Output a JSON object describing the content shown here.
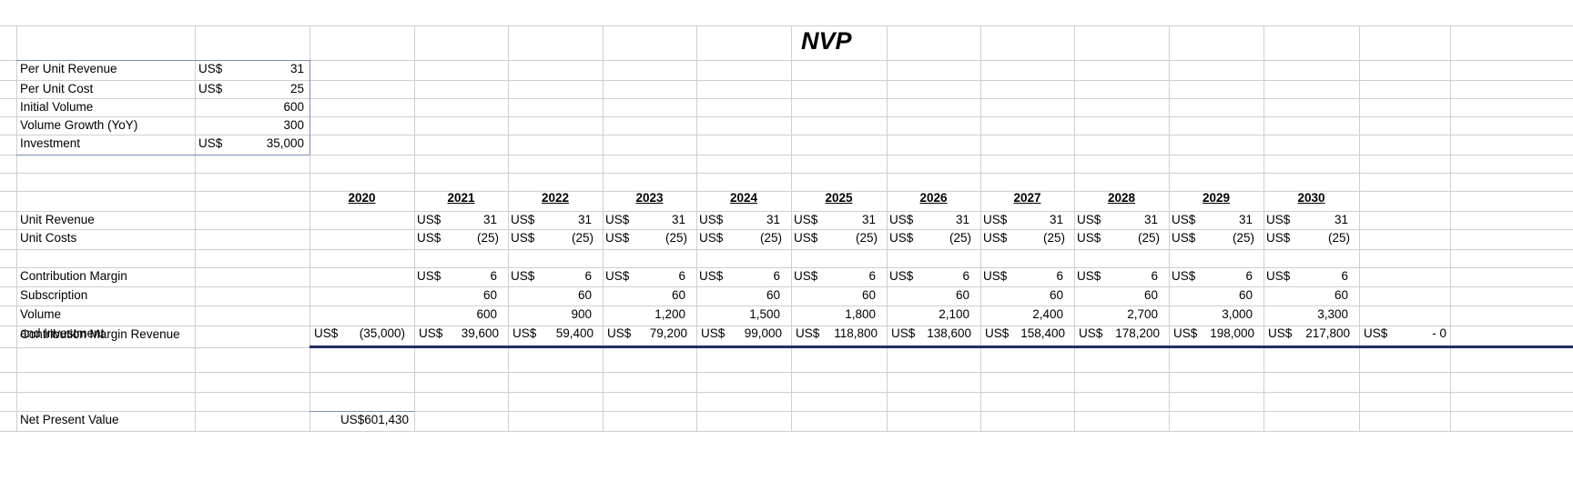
{
  "title": "NVP",
  "currency": "US$",
  "inputs": [
    {
      "label": "Per Unit Revenue",
      "unit": "US$",
      "value": "31"
    },
    {
      "label": "Per Unit Cost",
      "unit": "US$",
      "value": "25"
    },
    {
      "label": "Initial Volume",
      "unit": "",
      "value": "600"
    },
    {
      "label": "Volume Growth (YoY)",
      "unit": "",
      "value": "300"
    },
    {
      "label": "Investment",
      "unit": "US$",
      "value": "35,000"
    }
  ],
  "years": [
    "2020",
    "2021",
    "2022",
    "2023",
    "2024",
    "2025",
    "2026",
    "2027",
    "2028",
    "2029",
    "2030"
  ],
  "rows": {
    "unit_revenue": {
      "label": "Unit Revenue",
      "values": [
        "",
        "31",
        "31",
        "31",
        "31",
        "31",
        "31",
        "31",
        "31",
        "31",
        "31"
      ]
    },
    "unit_costs": {
      "label": "Unit Costs",
      "values": [
        "",
        "(25)",
        "(25)",
        "(25)",
        "(25)",
        "(25)",
        "(25)",
        "(25)",
        "(25)",
        "(25)",
        "(25)"
      ]
    },
    "contribution_margin": {
      "label": "Contribution Margin",
      "values": [
        "",
        "6",
        "6",
        "6",
        "6",
        "6",
        "6",
        "6",
        "6",
        "6",
        "6"
      ]
    },
    "subscription": {
      "label": "Subscription",
      "values": [
        "",
        "60",
        "60",
        "60",
        "60",
        "60",
        "60",
        "60",
        "60",
        "60",
        "60"
      ]
    },
    "volume": {
      "label": "Volume",
      "values": [
        "",
        "600",
        "900",
        "1,200",
        "1,500",
        "1,800",
        "2,100",
        "2,400",
        "2,700",
        "3,000",
        "3,300"
      ]
    },
    "cm_rev_inv": {
      "label1": "Contribution Margin Revenue",
      "label2": "and Investment",
      "values": [
        "(35,000)",
        "39,600",
        "59,400",
        "79,200",
        "99,000",
        "118,800",
        "138,600",
        "158,400",
        "178,200",
        "198,000",
        "217,800"
      ],
      "extra_unit": "US$",
      "extra_value": "- 0"
    }
  },
  "npv": {
    "label": "Net Present Value",
    "value": "US$601,430"
  }
}
